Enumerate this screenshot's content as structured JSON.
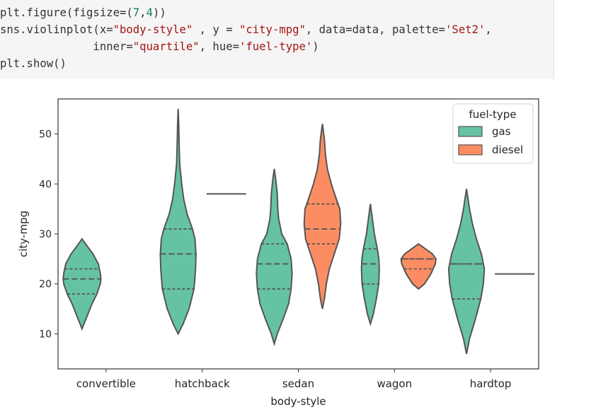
{
  "code_lines": [
    [
      {
        "t": "plt.figure(figsize=("
      },
      {
        "t": "7",
        "c": "num"
      },
      {
        "t": ","
      },
      {
        "t": "4",
        "c": "num"
      },
      {
        "t": "))"
      }
    ],
    [
      {
        "t": "sns.violinplot(x="
      },
      {
        "t": "\"body-style\"",
        "c": "str"
      },
      {
        "t": " , y = "
      },
      {
        "t": "\"city-mpg\"",
        "c": "str"
      },
      {
        "t": ", data=data, palette="
      },
      {
        "t": "'Set2'",
        "c": "str"
      },
      {
        "t": ","
      }
    ],
    [
      {
        "t": "              inner="
      },
      {
        "t": "\"quartile\"",
        "c": "str"
      },
      {
        "t": ", hue="
      },
      {
        "t": "'fuel-type'",
        "c": "str"
      },
      {
        "t": ")"
      }
    ],
    [
      {
        "t": "plt.show()"
      }
    ]
  ],
  "chart_data": {
    "type": "violin",
    "xlabel": "body-style",
    "ylabel": "city-mpg",
    "categories": [
      "convertible",
      "hatchback",
      "sedan",
      "wagon",
      "hardtop"
    ],
    "y_ticks": [
      10,
      20,
      30,
      40,
      50
    ],
    "ylim": [
      3,
      57
    ],
    "legend": {
      "title": "fuel-type",
      "placement": "upper-right"
    },
    "series": [
      {
        "name": "gas",
        "color": "#66c2a5",
        "violins": [
          {
            "category": "convertible",
            "min": 11,
            "max": 29,
            "q1": 18,
            "median": 21,
            "q3": 23,
            "profile": [
              [
                11,
                0
              ],
              [
                12,
                0.1
              ],
              [
                14,
                0.3
              ],
              [
                16,
                0.5
              ],
              [
                18,
                0.75
              ],
              [
                20,
                0.92
              ],
              [
                21,
                0.95
              ],
              [
                22,
                0.93
              ],
              [
                24,
                0.82
              ],
              [
                26,
                0.55
              ],
              [
                28,
                0.18
              ],
              [
                29,
                0
              ]
            ]
          },
          {
            "category": "hatchback",
            "min": 10,
            "max": 55,
            "q1": 19,
            "median": 26,
            "q3": 31,
            "profile": [
              [
                10,
                0
              ],
              [
                12,
                0.25
              ],
              [
                15,
                0.55
              ],
              [
                19,
                0.8
              ],
              [
                23,
                0.88
              ],
              [
                26,
                0.9
              ],
              [
                29,
                0.85
              ],
              [
                31,
                0.72
              ],
              [
                34,
                0.45
              ],
              [
                37,
                0.28
              ],
              [
                40,
                0.18
              ],
              [
                44,
                0.08
              ],
              [
                48,
                0.05
              ],
              [
                52,
                0.03
              ],
              [
                55,
                0
              ]
            ]
          },
          {
            "category": "sedan",
            "min": 8,
            "max": 43,
            "q1": 19,
            "median": 24,
            "q3": 28,
            "profile": [
              [
                8,
                0
              ],
              [
                10,
                0.15
              ],
              [
                13,
                0.45
              ],
              [
                16,
                0.72
              ],
              [
                19,
                0.85
              ],
              [
                22,
                0.9
              ],
              [
                25,
                0.85
              ],
              [
                28,
                0.65
              ],
              [
                30,
                0.38
              ],
              [
                33,
                0.22
              ],
              [
                35,
                0.18
              ],
              [
                38,
                0.15
              ],
              [
                41,
                0.07
              ],
              [
                43,
                0
              ]
            ]
          },
          {
            "category": "wagon",
            "min": 12,
            "max": 36,
            "q1": 20,
            "median": 24,
            "q3": 27,
            "profile": [
              [
                12,
                0
              ],
              [
                14,
                0.15
              ],
              [
                17,
                0.3
              ],
              [
                20,
                0.42
              ],
              [
                23,
                0.45
              ],
              [
                25,
                0.43
              ],
              [
                27,
                0.35
              ],
              [
                30,
                0.2
              ],
              [
                33,
                0.1
              ],
              [
                36,
                0
              ]
            ]
          },
          {
            "category": "hardtop",
            "min": 6,
            "max": 39,
            "q1": 17,
            "median": 24,
            "q3": 24,
            "profile": [
              [
                6,
                0
              ],
              [
                9,
                0.15
              ],
              [
                13,
                0.45
              ],
              [
                17,
                0.72
              ],
              [
                20,
                0.85
              ],
              [
                23,
                0.9
              ],
              [
                26,
                0.75
              ],
              [
                29,
                0.5
              ],
              [
                32,
                0.3
              ],
              [
                35,
                0.15
              ],
              [
                37,
                0.08
              ],
              [
                39,
                0
              ]
            ]
          }
        ]
      },
      {
        "name": "diesel",
        "color": "#fc8d62",
        "violins": [
          {
            "category": "hatchback",
            "min": 38,
            "max": 38,
            "q1": 38,
            "median": 38,
            "q3": 38,
            "profile": []
          },
          {
            "category": "sedan",
            "min": 15,
            "max": 52,
            "q1": 28,
            "median": 31,
            "q3": 36,
            "profile": [
              [
                15,
                0
              ],
              [
                17,
                0.1
              ],
              [
                20,
                0.2
              ],
              [
                23,
                0.35
              ],
              [
                26,
                0.6
              ],
              [
                29,
                0.85
              ],
              [
                32,
                0.92
              ],
              [
                35,
                0.88
              ],
              [
                37,
                0.7
              ],
              [
                40,
                0.45
              ],
              [
                43,
                0.25
              ],
              [
                46,
                0.15
              ],
              [
                49,
                0.1
              ],
              [
                52,
                0
              ]
            ]
          },
          {
            "category": "wagon",
            "min": 19,
            "max": 28,
            "q1": 23,
            "median": 25,
            "q3": 25,
            "profile": [
              [
                19,
                0
              ],
              [
                20,
                0.3
              ],
              [
                22,
                0.62
              ],
              [
                24,
                0.85
              ],
              [
                25,
                0.88
              ],
              [
                26,
                0.7
              ],
              [
                27,
                0.35
              ],
              [
                28,
                0
              ]
            ]
          },
          {
            "category": "hardtop",
            "min": 22,
            "max": 22,
            "q1": 22,
            "median": 22,
            "q3": 22,
            "profile": []
          }
        ]
      }
    ]
  }
}
